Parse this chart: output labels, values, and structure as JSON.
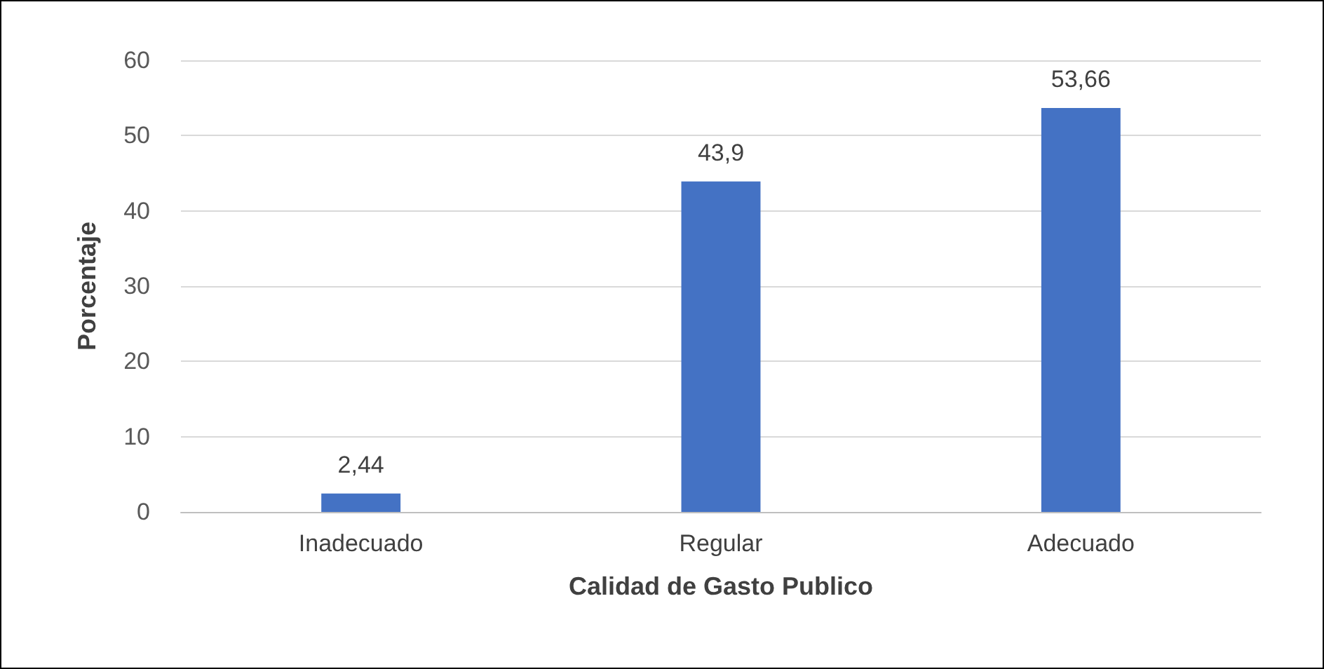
{
  "chart_data": {
    "type": "bar",
    "xlabel": "Calidad de Gasto Publico",
    "ylabel": "Porcentaje",
    "categories": [
      "Inadecuado",
      "Regular",
      "Adecuado"
    ],
    "values": [
      2.44,
      43.9,
      53.66
    ],
    "value_labels": [
      "2,44",
      "43,9",
      "53,66"
    ],
    "color": "#4472c4",
    "ylim": [
      0,
      60
    ],
    "yticks": [
      0,
      10,
      20,
      30,
      40,
      50,
      60
    ],
    "grid": "y"
  }
}
